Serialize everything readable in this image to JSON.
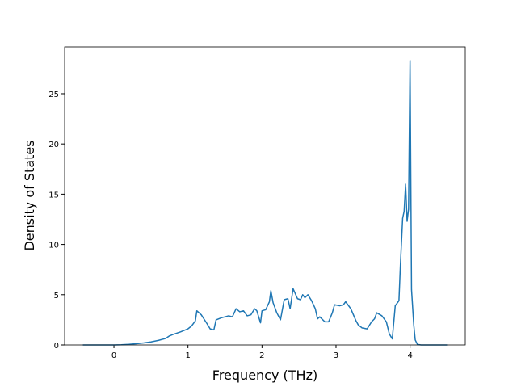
{
  "chart_data": {
    "type": "line",
    "x_label": "Frequency (THz)",
    "y_label": "Density of States",
    "x": [
      -0.42,
      -0.2,
      0,
      0.1,
      0.2,
      0.3,
      0.4,
      0.5,
      0.6,
      0.7,
      0.75,
      0.8,
      0.9,
      1.0,
      1.05,
      1.1,
      1.12,
      1.18,
      1.25,
      1.3,
      1.35,
      1.38,
      1.45,
      1.5,
      1.55,
      1.6,
      1.65,
      1.7,
      1.75,
      1.8,
      1.85,
      1.9,
      1.93,
      1.98,
      2.0,
      2.05,
      2.1,
      2.12,
      2.15,
      2.2,
      2.25,
      2.3,
      2.35,
      2.38,
      2.42,
      2.48,
      2.52,
      2.55,
      2.58,
      2.62,
      2.67,
      2.72,
      2.75,
      2.78,
      2.85,
      2.9,
      2.95,
      2.98,
      3.05,
      3.1,
      3.13,
      3.2,
      3.27,
      3.3,
      3.35,
      3.42,
      3.48,
      3.52,
      3.55,
      3.62,
      3.68,
      3.72,
      3.76,
      3.8,
      3.83,
      3.85,
      3.87,
      3.9,
      3.92,
      3.94,
      3.96,
      3.98,
      4.0,
      4.02,
      4.05,
      4.07,
      4.1,
      4.15,
      4.5
    ],
    "series": [
      {
        "color": "#1f77b4",
        "values": [
          0,
          0,
          0,
          0.02,
          0.06,
          0.12,
          0.2,
          0.3,
          0.45,
          0.65,
          0.9,
          1.05,
          1.3,
          1.6,
          1.9,
          2.4,
          3.4,
          3.0,
          2.2,
          1.6,
          1.5,
          2.5,
          2.7,
          2.8,
          2.9,
          2.8,
          3.6,
          3.3,
          3.4,
          2.9,
          3.0,
          3.6,
          3.4,
          2.2,
          3.4,
          3.5,
          4.3,
          5.4,
          4.2,
          3.2,
          2.5,
          4.5,
          4.6,
          3.6,
          5.6,
          4.6,
          4.5,
          5.0,
          4.7,
          5.0,
          4.4,
          3.6,
          2.6,
          2.8,
          2.3,
          2.3,
          3.2,
          4.0,
          3.9,
          4.0,
          4.3,
          3.6,
          2.4,
          2.0,
          1.7,
          1.6,
          2.3,
          2.6,
          3.2,
          2.9,
          2.3,
          1.1,
          0.6,
          3.9,
          4.2,
          4.4,
          8,
          12.6,
          13.3,
          16.0,
          12.3,
          13.5,
          28.3,
          5.5,
          2.0,
          0.5,
          0.05,
          0,
          0
        ]
      }
    ],
    "xlim": [
      -0.666,
      4.746
    ],
    "ylim": [
      0,
      29.66
    ],
    "xticks": [
      0,
      1,
      2,
      3,
      4
    ],
    "yticks": [
      0,
      5,
      10,
      15,
      20,
      25
    ]
  }
}
